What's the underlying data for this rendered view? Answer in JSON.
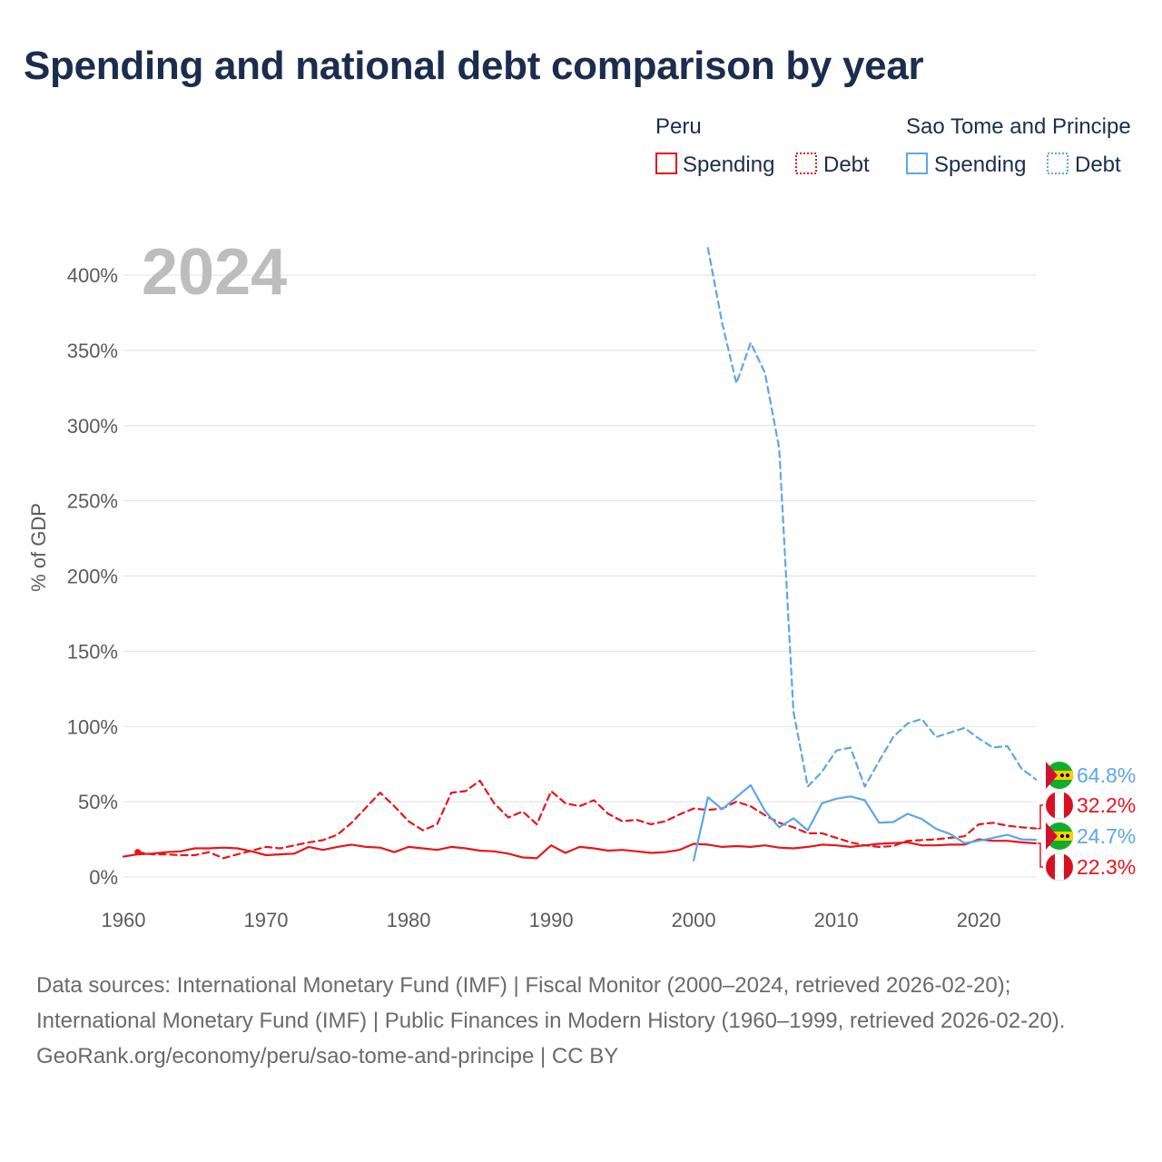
{
  "title": "Spending and national debt comparison by year",
  "legend": {
    "groups": [
      {
        "name": "Peru",
        "color": "#e8151b",
        "items": [
          "Spending",
          "Debt"
        ]
      },
      {
        "name": "Sao Tome and Principe",
        "color": "#5da6e8",
        "items": [
          "Spending",
          "Debt"
        ]
      }
    ]
  },
  "year_label": "2024",
  "chart_data": {
    "type": "line",
    "ylabel": "% of GDP",
    "xlabel": "",
    "xlim": [
      1960,
      2024
    ],
    "ylim": [
      0,
      420
    ],
    "x_ticks": [
      1960,
      1970,
      1980,
      1990,
      2000,
      2010,
      2020
    ],
    "x_tick_labels": [
      "1960",
      "1970",
      "1980",
      "1990",
      "2000",
      "2010",
      "2020"
    ],
    "y_ticks": [
      0,
      50,
      100,
      150,
      200,
      250,
      300,
      350,
      400
    ],
    "y_tick_labels": [
      "0%",
      "50%",
      "100%",
      "150%",
      "200%",
      "250%",
      "300%",
      "350%",
      "400%"
    ],
    "series": [
      {
        "name": "Peru Spending",
        "country": "Peru",
        "measure": "Spending",
        "color": "#e8151b",
        "dash": "solid",
        "x": [
          1960,
          1961,
          1962,
          1963,
          1964,
          1965,
          1966,
          1967,
          1968,
          1969,
          1970,
          1971,
          1972,
          1973,
          1974,
          1975,
          1976,
          1977,
          1978,
          1979,
          1980,
          1981,
          1982,
          1983,
          1984,
          1985,
          1986,
          1987,
          1988,
          1989,
          1990,
          1991,
          1992,
          1993,
          1994,
          1995,
          1996,
          1997,
          1998,
          1999,
          2000,
          2001,
          2002,
          2003,
          2004,
          2005,
          2006,
          2007,
          2008,
          2009,
          2010,
          2011,
          2012,
          2013,
          2014,
          2015,
          2016,
          2017,
          2018,
          2019,
          2020,
          2021,
          2022,
          2023,
          2024
        ],
        "values": [
          13.5,
          15,
          15.5,
          16.5,
          17,
          19,
          19,
          19.5,
          19,
          17,
          14.5,
          15,
          15.5,
          20,
          18,
          20,
          21.5,
          20,
          19.5,
          16.5,
          20,
          19,
          18,
          20,
          19,
          17.5,
          17,
          15.5,
          13,
          12.5,
          21,
          16,
          20,
          19,
          17.5,
          18,
          17,
          16,
          16.5,
          18,
          22,
          21.5,
          20,
          20.5,
          20,
          21,
          19.5,
          19,
          20,
          21.5,
          21,
          20,
          21,
          22,
          22.5,
          23,
          21,
          21,
          21.5,
          21.5,
          25,
          24,
          24,
          23,
          22.3
        ]
      },
      {
        "name": "Peru Debt",
        "country": "Peru",
        "measure": "Debt",
        "color": "#e8151b",
        "dash": "dashed",
        "x": [
          1961,
          1962,
          1963,
          1964,
          1965,
          1966,
          1967,
          1968,
          1969,
          1970,
          1971,
          1972,
          1973,
          1974,
          1975,
          1976,
          1977,
          1978,
          1979,
          1980,
          1981,
          1982,
          1983,
          1984,
          1985,
          1986,
          1987,
          1988,
          1989,
          1990,
          1991,
          1992,
          1993,
          1994,
          1995,
          1996,
          1997,
          1998,
          1999,
          2000,
          2001,
          2002,
          2003,
          2004,
          2005,
          2006,
          2007,
          2008,
          2009,
          2010,
          2011,
          2012,
          2013,
          2014,
          2015,
          2016,
          2017,
          2018,
          2019,
          2020,
          2021,
          2022,
          2023,
          2024
        ],
        "values": [
          16.5,
          15,
          15,
          14.5,
          14.5,
          16.5,
          12.5,
          15,
          17.5,
          20,
          19,
          21,
          23,
          24.5,
          28,
          36,
          46,
          56,
          47,
          37,
          31,
          35,
          56,
          57,
          64,
          49,
          39.5,
          43.5,
          35,
          57,
          49,
          47,
          51,
          42,
          37,
          38,
          35,
          37,
          41.5,
          45.5,
          44.5,
          45.5,
          50,
          47,
          41,
          36,
          33,
          29,
          29,
          26,
          23,
          21,
          20,
          20.5,
          24,
          24.5,
          25,
          26,
          27,
          35,
          36,
          34,
          33,
          32.2
        ]
      },
      {
        "name": "Sao Tome and Principe Spending",
        "country": "Sao Tome and Principe",
        "measure": "Spending",
        "color": "#5da6e8",
        "dash": "solid",
        "x": [
          2000,
          2001,
          2002,
          2003,
          2004,
          2005,
          2006,
          2007,
          2008,
          2009,
          2010,
          2011,
          2012,
          2013,
          2014,
          2015,
          2016,
          2017,
          2018,
          2019,
          2020,
          2021,
          2022,
          2023,
          2024
        ],
        "values": [
          11,
          53,
          45,
          53,
          61,
          44,
          33,
          39,
          31,
          49,
          52,
          53.5,
          51,
          36,
          36.5,
          42,
          38.5,
          32,
          28.5,
          22.5,
          24,
          26,
          28,
          25,
          24.7
        ]
      },
      {
        "name": "Sao Tome and Principe Debt",
        "country": "Sao Tome and Principe",
        "measure": "Debt",
        "color": "#5da6e8",
        "dash": "dashed",
        "x": [
          2001,
          2002,
          2003,
          2004,
          2005,
          2006,
          2007,
          2008,
          2009,
          2010,
          2011,
          2012,
          2013,
          2014,
          2015,
          2016,
          2017,
          2018,
          2019,
          2020,
          2021,
          2022,
          2023,
          2024
        ],
        "values": [
          418,
          368,
          328,
          355,
          335,
          285,
          110,
          60,
          70,
          84,
          86,
          60,
          77,
          93,
          102,
          105,
          93,
          96,
          99,
          92,
          86,
          87,
          72,
          64.8
        ]
      }
    ],
    "end_labels": [
      {
        "series": "Sao Tome and Principe Debt",
        "text": "64.8%",
        "value": 64.8
      },
      {
        "series": "Peru Debt",
        "text": "32.2%",
        "value": 32.2
      },
      {
        "series": "Sao Tome and Principe Spending",
        "text": "24.7%",
        "value": 24.7
      },
      {
        "series": "Peru Spending",
        "text": "22.3%",
        "value": 22.3
      }
    ]
  },
  "footer": {
    "sources": "Data sources: International Monetary Fund (IMF) | Fiscal Monitor (2000–2024, retrieved 2026-02-20); International Monetary Fund (IMF) | Public Finances in Modern History (1960–1999, retrieved 2026-02-20).",
    "credit": "GeoRank.org/economy/peru/sao-tome-and-principe | CC BY"
  }
}
